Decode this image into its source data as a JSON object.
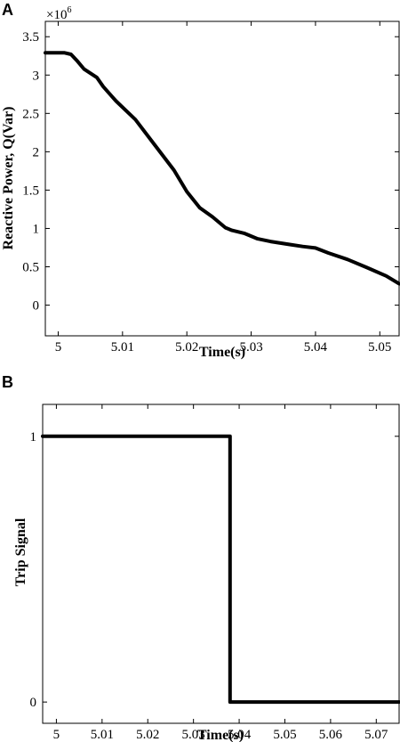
{
  "panels": [
    {
      "label": "A",
      "exponent_base": "×10",
      "exponent_power": "6",
      "chart_data": {
        "type": "line",
        "title": "",
        "xlabel": "Time(s)",
        "ylabel": "Reactive Power, Q(Var)",
        "xlim": [
          4.998,
          5.053
        ],
        "ylim": [
          -400000,
          3700000
        ],
        "xticks": [
          5,
          5.01,
          5.02,
          5.03,
          5.04,
          5.05
        ],
        "xtick_labels": [
          "5",
          "5.01",
          "5.02",
          "5.03",
          "5.04",
          "5.05"
        ],
        "yticks": [
          0,
          500000,
          1000000,
          1500000,
          2000000,
          2500000,
          3000000,
          3500000
        ],
        "ytick_labels": [
          "0",
          "0.5",
          "1",
          "1.5",
          "2",
          "2.5",
          "3",
          "3.5"
        ],
        "series": [
          {
            "x": [
              4.998,
              5.0,
              5.001,
              5.002,
              5.003,
              5.004,
              5.006,
              5.007,
              5.009,
              5.012,
              5.015,
              5.018,
              5.02,
              5.022,
              5.024,
              5.026,
              5.027,
              5.029,
              5.031,
              5.033,
              5.036,
              5.038,
              5.04,
              5.042,
              5.045,
              5.048,
              5.051,
              5.053
            ],
            "y": [
              3290000,
              3290000,
              3290000,
              3270000,
              3180000,
              3080000,
              2970000,
              2850000,
              2660000,
              2420000,
              2090000,
              1760000,
              1480000,
              1270000,
              1150000,
              1010000,
              975000,
              935000,
              865000,
              830000,
              790000,
              765000,
              745000,
              680000,
              595000,
              490000,
              380000,
              280000
            ]
          }
        ]
      }
    },
    {
      "label": "B",
      "chart_data": {
        "type": "line",
        "title": "",
        "xlabel": "Time(s)",
        "ylabel": "Trip Signal",
        "xlim": [
          4.997,
          5.075
        ],
        "ylim": [
          -0.08,
          1.12
        ],
        "xticks": [
          5,
          5.01,
          5.02,
          5.03,
          5.04,
          5.05,
          5.06,
          5.07
        ],
        "xtick_labels": [
          "5",
          "5.01",
          "5.02",
          "5.03",
          "5.04",
          "5.05",
          "5.06",
          "5.07"
        ],
        "yticks": [
          0,
          1
        ],
        "ytick_labels": [
          "0",
          "1"
        ],
        "series": [
          {
            "x": [
              4.997,
              5.038,
              5.038,
              5.075
            ],
            "y": [
              1,
              1,
              0,
              0
            ]
          }
        ]
      }
    }
  ]
}
